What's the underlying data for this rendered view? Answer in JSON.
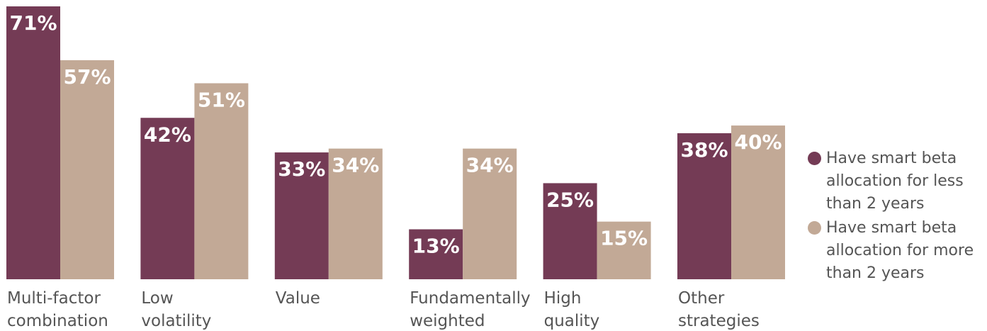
{
  "chart_data": {
    "type": "bar",
    "categories": [
      [
        "Multi-factor",
        "combination"
      ],
      [
        "Low",
        "volatility"
      ],
      [
        "Value"
      ],
      [
        "Fundamentally",
        "weighted"
      ],
      [
        "High",
        "quality"
      ],
      [
        "Other",
        "strategies"
      ]
    ],
    "series": [
      {
        "name": "Have smart beta allocation for less than 2 years",
        "legend_lines": [
          "Have smart beta",
          "allocation for less",
          "than 2 years"
        ],
        "color": "#743B55",
        "values": [
          71,
          42,
          33,
          13,
          25,
          38
        ]
      },
      {
        "name": "Have smart beta allocation for more than 2 years",
        "legend_lines": [
          "Have smart beta",
          "allocation for more",
          "than 2 years"
        ],
        "color": "#C2A996",
        "values": [
          57,
          51,
          34,
          34,
          15,
          40
        ]
      }
    ],
    "value_suffix": "%",
    "ylim": [
      0,
      71
    ],
    "legend_position": "right",
    "grid": false
  }
}
